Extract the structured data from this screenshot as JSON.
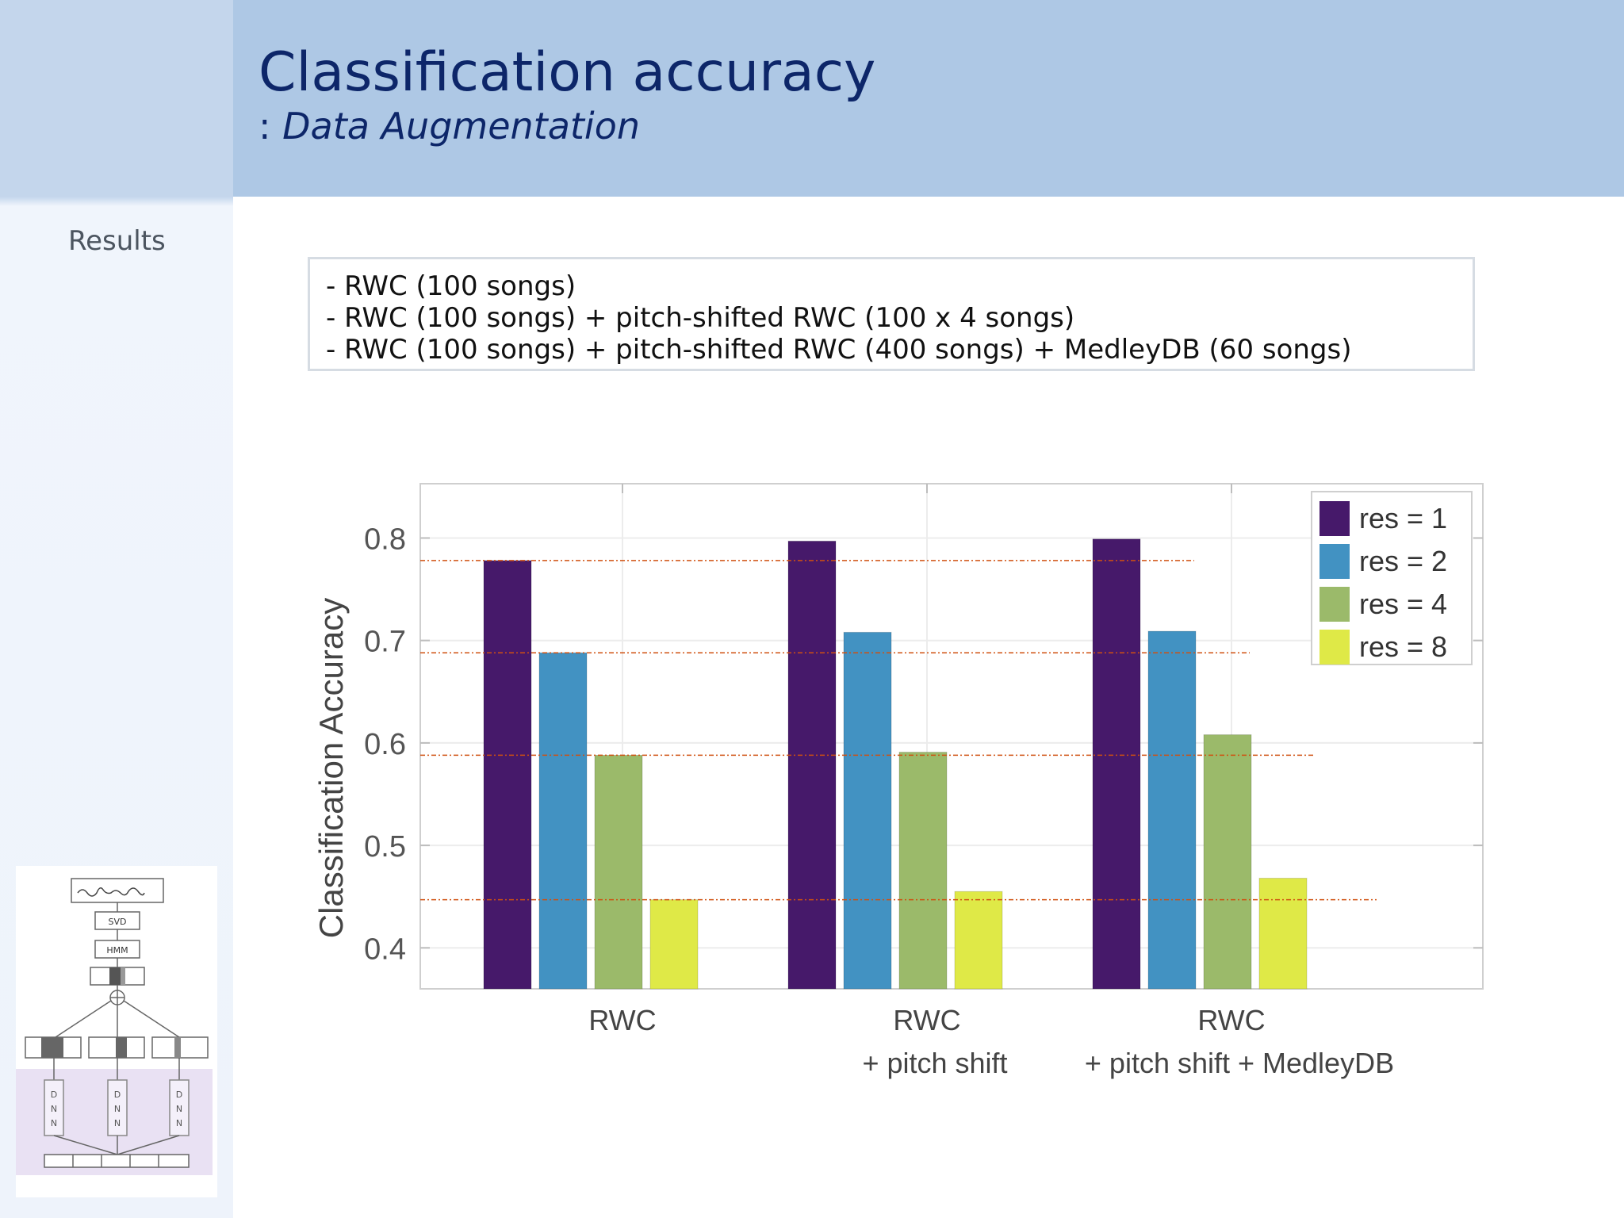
{
  "header": {
    "title": "Classification accuracy",
    "subtitle_sep": ":",
    "subtitle": "Data Augmentation"
  },
  "sidebar": {
    "section": "Results"
  },
  "notes": [
    "- RWC (100 songs)",
    "- RWC (100 songs) + pitch-shifted RWC (100 x 4 songs)",
    "- RWC (100 songs) + pitch-shifted RWC (400 songs) + MedleyDB (60 songs)"
  ],
  "thumbnail": {
    "labels": [
      "SVD",
      "HMM",
      "D\nN\nN",
      "D\nN\nN",
      "D\nN\nN"
    ]
  },
  "chart_data": {
    "type": "bar",
    "ylabel": "Classification Accuracy",
    "ylim": [
      0.36,
      0.853
    ],
    "yticks": [
      "0.4",
      "0.5",
      "0.6",
      "0.7",
      "0.8"
    ],
    "categories": [
      [
        "RWC"
      ],
      [
        "RWC",
        "+ pitch shift"
      ],
      [
        "RWC",
        "+ pitch shift + MedleyDB"
      ]
    ],
    "series": [
      {
        "name": "res = 1",
        "color": "#46196a",
        "values": [
          0.778,
          0.797,
          0.799
        ]
      },
      {
        "name": "res = 2",
        "color": "#4292c2",
        "values": [
          0.688,
          0.708,
          0.709
        ]
      },
      {
        "name": "res = 4",
        "color": "#9bba6a",
        "values": [
          0.588,
          0.591,
          0.608
        ]
      },
      {
        "name": "res = 8",
        "color": "#dfe947",
        "values": [
          0.447,
          0.455,
          0.468
        ]
      }
    ],
    "reference_lines": {
      "color": "#d05010",
      "values": [
        0.778,
        0.688,
        0.588,
        0.447
      ]
    },
    "legend_position": "top-right",
    "grid": true
  }
}
